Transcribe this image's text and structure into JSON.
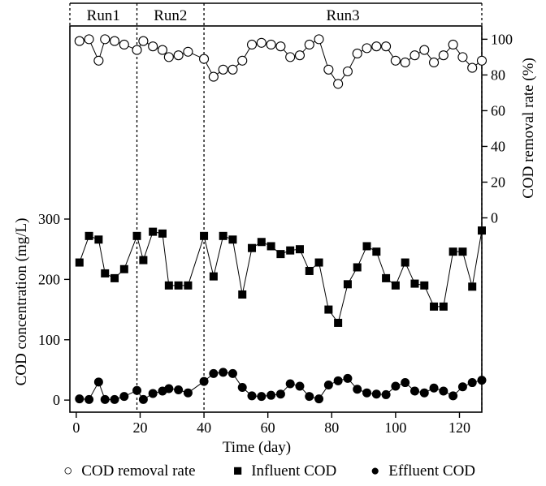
{
  "chart_data": {
    "type": "line",
    "x_axis": {
      "label": "Time (day)",
      "range": [
        -2,
        127
      ],
      "ticks": [
        0,
        20,
        40,
        60,
        80,
        100,
        120
      ]
    },
    "y_left": {
      "label": "COD concentration (mg/L)",
      "range": [
        -20,
        620
      ],
      "ticks": [
        0,
        100,
        200,
        300
      ]
    },
    "y_right": {
      "label": "COD removal rate (%)",
      "ticks": [
        0,
        20,
        40,
        60,
        80,
        100
      ],
      "zero_at_concentration": 302,
      "concentration_per_percent": 2.96
    },
    "runs": [
      {
        "label": "Run1",
        "start": -2,
        "end": 19
      },
      {
        "label": "Run2",
        "start": 19,
        "end": 40
      },
      {
        "label": "Run3",
        "start": 40,
        "end": 127
      }
    ],
    "series": [
      {
        "name": "Influent COD",
        "axis": "left",
        "marker": "filled-square",
        "x": [
          1,
          4,
          7,
          9,
          12,
          15,
          19,
          21,
          24,
          27,
          29,
          32,
          35,
          40,
          43,
          46,
          49,
          52,
          55,
          58,
          61,
          64,
          67,
          70,
          73,
          76,
          79,
          82,
          85,
          88,
          91,
          94,
          97,
          100,
          103,
          106,
          109,
          112,
          115,
          118,
          121,
          124,
          127
        ],
        "values": [
          228,
          272,
          266,
          210,
          202,
          217,
          272,
          232,
          279,
          276,
          190,
          190,
          190,
          272,
          205,
          272,
          266,
          175,
          252,
          262,
          255,
          242,
          248,
          250,
          214,
          228,
          150,
          128,
          192,
          220,
          255,
          246,
          202,
          190,
          228,
          193,
          190,
          155,
          155,
          246,
          246,
          188,
          281
        ]
      },
      {
        "name": "Effluent COD",
        "axis": "left",
        "marker": "filled-circle",
        "x": [
          1,
          4,
          7,
          9,
          12,
          15,
          19,
          21,
          24,
          27,
          29,
          32,
          35,
          40,
          43,
          46,
          49,
          52,
          55,
          58,
          61,
          64,
          67,
          70,
          73,
          76,
          79,
          82,
          85,
          88,
          91,
          94,
          97,
          100,
          103,
          106,
          109,
          112,
          115,
          118,
          121,
          124,
          127
        ],
        "values": [
          2,
          1,
          30,
          1,
          1,
          6,
          16,
          1,
          11,
          15,
          19,
          17,
          12,
          31,
          44,
          46,
          44,
          21,
          7,
          6,
          8,
          10,
          27,
          23,
          6,
          2,
          25,
          32,
          36,
          18,
          12,
          10,
          9,
          23,
          29,
          15,
          12,
          20,
          15,
          7,
          22,
          29,
          33
        ]
      },
      {
        "name": "COD removal rate",
        "axis": "right",
        "marker": "open-circle",
        "x": [
          1,
          4,
          7,
          9,
          12,
          15,
          19,
          21,
          24,
          27,
          29,
          32,
          35,
          40,
          43,
          46,
          49,
          52,
          55,
          58,
          61,
          64,
          67,
          70,
          73,
          76,
          79,
          82,
          85,
          88,
          91,
          94,
          97,
          100,
          103,
          106,
          109,
          112,
          115,
          118,
          121,
          124,
          127
        ],
        "values": [
          99,
          100,
          88,
          100,
          99,
          97,
          94,
          99,
          96,
          94,
          90,
          91,
          93,
          89,
          79,
          83,
          83,
          88,
          97,
          98,
          97,
          96,
          90,
          91,
          97,
          100,
          83,
          75,
          82,
          92,
          95,
          96,
          96,
          88,
          87,
          91,
          94,
          87,
          91,
          97,
          90,
          84,
          88
        ]
      }
    ]
  },
  "legend": {
    "removal_symbol": "○",
    "removal_label": "COD removal rate",
    "influent_symbol": "■",
    "influent_label": "Influent COD",
    "effluent_symbol": "●",
    "effluent_label": "Effluent COD"
  }
}
